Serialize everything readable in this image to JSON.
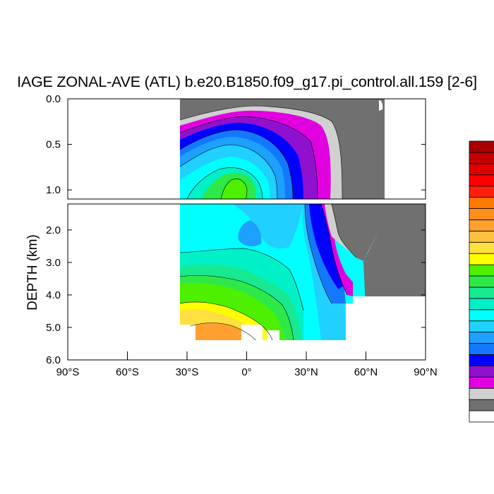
{
  "chart_data": {
    "type": "heatmap",
    "title": "IAGE ZONAL-AVE (ATL) b.e20.B1850.f09_g17.pi_control.all.159 [2-6]",
    "xlabel": "",
    "ylabel": "DEPTH (km)",
    "x_ticks": [
      "90°S",
      "60°S",
      "30°S",
      "0°",
      "30°N",
      "60°N",
      "90°N"
    ],
    "x_tick_values": [
      -90,
      -60,
      -30,
      0,
      30,
      60,
      90
    ],
    "y_ticks_upper": [
      "0.0",
      "0.5",
      "1.0"
    ],
    "y_ticks_upper_values": [
      0,
      0.5,
      1.0
    ],
    "y_ticks_lower": [
      "2.0",
      "3.0",
      "4.0",
      "5.0",
      "6.0"
    ],
    "y_ticks_lower_values": [
      2,
      3,
      4,
      5,
      6
    ],
    "xlim": [
      -90,
      90
    ],
    "ylim_upper": [
      0,
      1.1
    ],
    "ylim_lower": [
      1.2,
      6.0
    ],
    "data_lat_range": [
      -34,
      66
    ],
    "colorbar_colors": [
      "#ffffff",
      "#707070",
      "#d0d0d0",
      "#e000e0",
      "#9010d0",
      "#0000ff",
      "#1478ff",
      "#1ea0ff",
      "#20d0ff",
      "#00ffff",
      "#00f0c8",
      "#18e890",
      "#2ee84a",
      "#4cf000",
      "#ffff00",
      "#ffe040",
      "#ffc040",
      "#ffa030",
      "#ff9020",
      "#ff7a00",
      "#ff2010",
      "#ff0000",
      "#e00000",
      "#c40000",
      "#a80000"
    ]
  }
}
